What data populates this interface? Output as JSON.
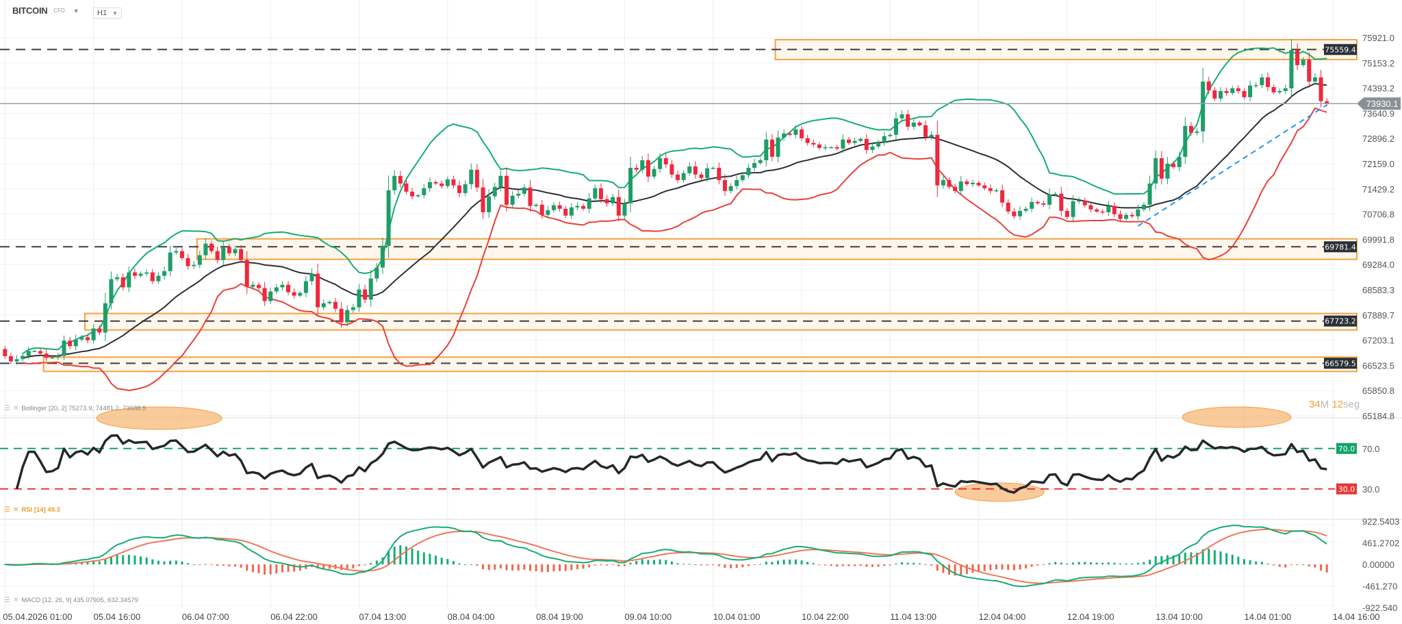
{
  "header": {
    "symbol": "BITCOIN",
    "instrument_type": "CFD",
    "timeframe": "H1"
  },
  "countdown": {
    "minutes": "34",
    "minutes_unit": "M",
    "seconds": "12",
    "seconds_unit": "seg"
  },
  "indicators": {
    "bollinger": {
      "label": "Bollinger [20, 2] 75273.9, 74481.2, 73688.5"
    },
    "rsi": {
      "label": "RSI [14] 49.3"
    },
    "macd": {
      "label": "MACD [12, 26, 9] 435.07905, 632.34579"
    }
  },
  "chart_data": {
    "type": "candlestick",
    "title": "",
    "price_axis": {
      "scale": "log",
      "ticks": [
        "75921.0",
        "75153.2",
        "74393.2",
        "73640.9",
        "72896.2",
        "72159.0",
        "71429.2",
        "70706.8",
        "69991.8",
        "69284.0",
        "68583.3",
        "67889.7",
        "67203.1",
        "66523.5",
        "65850.8",
        "65184.8"
      ]
    },
    "x_labels": [
      "05.04.2026 01:00",
      "05.04 16:00",
      "06.04 07:00",
      "06.04 22:00",
      "07.04 13:00",
      "08.04 04:00",
      "08.04 19:00",
      "09.04 10:00",
      "10.04 01:00",
      "10.04 22:00",
      "11.04 13:00",
      "12.04 04:00",
      "12.04 19:00",
      "13.04 10:00",
      "14.04 01:00",
      "14.04 16:00"
    ],
    "current_price": {
      "value": 73930.1,
      "label": "73930.1"
    },
    "levels": [
      {
        "value": 75559.4,
        "label": "75559.4"
      },
      {
        "value": 69781.4,
        "label": "69781.4"
      },
      {
        "value": 67723.2,
        "label": "67723.2"
      },
      {
        "value": 66579.5,
        "label": "66579.5"
      }
    ],
    "zones": [
      {
        "from_index": 131,
        "high": 75858,
        "low": 75255
      },
      {
        "from_index": 33,
        "high": 70005,
        "low": 69430
      },
      {
        "from_index": 14,
        "high": 67930,
        "low": 67480
      },
      {
        "from_index": 7,
        "high": 66745,
        "low": 66360
      }
    ],
    "trendline": {
      "start_index": 192,
      "start_price": 70370,
      "end_index": 224,
      "end_price": 73890
    },
    "first_open": 66964,
    "close": [
      66770,
      66630,
      66690,
      66780,
      66910,
      66910,
      66840,
      66730,
      66740,
      66780,
      67190,
      67040,
      67220,
      67280,
      67200,
      67520,
      67410,
      68210,
      68875,
      68930,
      68650,
      69065,
      68970,
      69030,
      69065,
      68820,
      68970,
      69100,
      69620,
      69660,
      69465,
      69240,
      69275,
      69545,
      69870,
      69660,
      69410,
      69775,
      69600,
      69715,
      69410,
      68665,
      68720,
      68630,
      68270,
      68535,
      68650,
      68720,
      68515,
      68420,
      68495,
      68820,
      69030,
      68100,
      68210,
      68250,
      68060,
      67690,
      68025,
      68100,
      68590,
      68310,
      68895,
      69200,
      69810,
      71390,
      71805,
      71585,
      71350,
      71215,
      71250,
      71450,
      71625,
      71585,
      71510,
      71705,
      71530,
      71310,
      71565,
      71985,
      71470,
      70760,
      71215,
      71490,
      71805,
      70975,
      71235,
      71290,
      71470,
      70940,
      70975,
      70685,
      70820,
      70960,
      70860,
      70665,
      70900,
      70940,
      70860,
      71155,
      71450,
      71135,
      71015,
      71195,
      70665,
      71015,
      72040,
      71985,
      72260,
      71785,
      72005,
      72320,
      72140,
      71845,
      71685,
      71885,
      72080,
      71845,
      71745,
      72025,
      72040,
      71685,
      71370,
      71510,
      71685,
      71825,
      72040,
      72180,
      72260,
      72865,
      72360,
      72925,
      73045,
      73005,
      73165,
      72905,
      72765,
      72720,
      72620,
      72640,
      72640,
      72600,
      72865,
      72765,
      72825,
      72885,
      72560,
      72660,
      72780,
      72965,
      73005,
      73490,
      73610,
      73245,
      73365,
      73285,
      72945,
      73005,
      71530,
      71685,
      71490,
      71370,
      71645,
      71565,
      71605,
      71530,
      71450,
      71370,
      71390,
      71035,
      70780,
      70645,
      70800,
      70860,
      71055,
      71015,
      70975,
      71270,
      71290,
      70800,
      70625,
      71075,
      71095,
      70960,
      70840,
      70780,
      70760,
      70940,
      70705,
      70570,
      70685,
      70645,
      70840,
      70975,
      71585,
      72320,
      71725,
      72160,
      72060,
      72360,
      73265,
      73065,
      73105,
      74590,
      74325,
      74080,
      74305,
      74245,
      74385,
      74305,
      74120,
      74470,
      74480,
      74715,
      74425,
      74265,
      74305,
      74385,
      75545,
      75085,
      75250,
      74590,
      74715,
      74000,
      73930.1
    ],
    "rsi": {
      "period": 14,
      "levels": [
        {
          "value": 70,
          "label": "70.0",
          "color": "#12a36a"
        },
        {
          "value": 30,
          "label": "30.0",
          "color": "#e53935"
        }
      ],
      "ylim": [
        0,
        100
      ]
    },
    "macd": {
      "fast": 12,
      "slow": 26,
      "signal": 9,
      "ticks": [
        {
          "value": 922.5403,
          "label": "922.5403"
        },
        {
          "value": 461.2702,
          "label": "461.2702"
        },
        {
          "value": 0,
          "label": "0.00000"
        },
        {
          "value": -461.27,
          "label": "-461.270"
        },
        {
          "value": -922.54,
          "label": "-922.540"
        }
      ]
    },
    "colors": {
      "up": "#1f9d68",
      "down": "#f0273e",
      "bb_upper": "#14ad72",
      "bb_mid": "#2b2f33",
      "bb_lower": "#e8403b",
      "level": "#3a3f44",
      "zone": "#f5a043",
      "trend": "#2196f3",
      "macd_line": "#14ad72",
      "signal_line": "#f0765a",
      "hist_up": "#14ad72",
      "hist_down": "#f0674c"
    }
  }
}
